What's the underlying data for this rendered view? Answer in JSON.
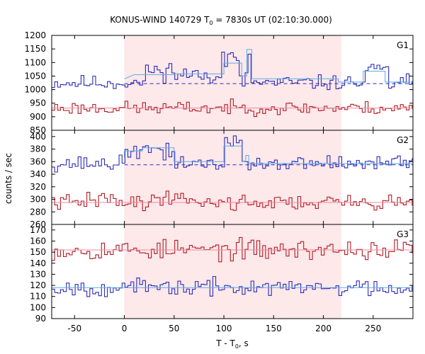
{
  "chart_data": {
    "type": "line",
    "title_main": "KONUS-WIND 140729 T",
    "title_sub": "0",
    "title_rest": " = 7830s UT (02:10:30.000)",
    "xlabel_main": "T - T",
    "xlabel_sub": "0",
    "xlabel_rest": ", s",
    "ylabel": "counts / sec",
    "xlim": [
      -73,
      290
    ],
    "xticks": [
      -50,
      0,
      50,
      100,
      150,
      200,
      250
    ],
    "shaded_interval": [
      0,
      218
    ],
    "colors": {
      "shade": "#fde8ea",
      "blue": "#2c2cb8",
      "red": "#b01c24",
      "blue_fit": "#5dade2",
      "red_fit": "#f08aa0",
      "blue_bg": "#2c2cb8"
    },
    "panels": [
      {
        "name": "G1",
        "ylim": [
          850,
          1200
        ],
        "yticks": [
          850,
          900,
          950,
          1000,
          1050,
          1100,
          1150,
          1200
        ],
        "series": [
          {
            "color": "blue",
            "base": 1025,
            "noise": 18,
            "seed": 11,
            "features": [
              [
                20,
                50,
                45
              ],
              [
                50,
                95,
                30
              ],
              [
                95,
                115,
                95
              ],
              [
                123,
                126,
                120
              ],
              [
                240,
                265,
                45
              ]
            ]
          },
          {
            "color": "red",
            "base": 932,
            "noise": 16,
            "seed": 23,
            "features": []
          }
        ],
        "fits": [
          {
            "color": "blue_fit",
            "points": [
              [
                0,
                1040
              ],
              [
                10,
                1055
              ],
              [
                50,
                1055
              ],
              [
                50,
                1058
              ],
              [
                100,
                1058
              ],
              [
                100,
                1098
              ],
              [
                118,
                1098
              ],
              [
                118,
                1050
              ],
              [
                123,
                1050
              ],
              [
                123,
                1148
              ],
              [
                128,
                1148
              ],
              [
                128,
                1040
              ],
              [
                215,
                1040
              ],
              [
                215,
                1028
              ],
              [
                240,
                1028
              ],
              [
                240,
                1068
              ],
              [
                262,
                1068
              ],
              [
                262,
                1028
              ],
              [
                290,
                1028
              ]
            ]
          },
          {
            "color": "red_fit",
            "points": [
              [
                -73,
                932
              ],
              [
                290,
                932
              ]
            ]
          }
        ],
        "bg": {
          "color": "blue_bg",
          "value": 1022,
          "dashed": true
        }
      },
      {
        "name": "G2",
        "ylim": [
          260,
          410
        ],
        "yticks": [
          260,
          280,
          300,
          320,
          340,
          360,
          380,
          400
        ],
        "series": [
          {
            "color": "blue",
            "base": 357,
            "noise": 8,
            "seed": 37,
            "features": [
              [
                0,
                50,
                20
              ],
              [
                100,
                118,
                32
              ]
            ]
          },
          {
            "color": "red",
            "base": 295,
            "noise": 8,
            "seed": 41,
            "features": [
              [
                -40,
                0,
                5
              ],
              [
                30,
                70,
                8
              ]
            ]
          }
        ],
        "fits": [
          {
            "color": "blue_fit",
            "points": [
              [
                0,
                367
              ],
              [
                0,
                377
              ],
              [
                18,
                377
              ],
              [
                18,
                382
              ],
              [
                50,
                382
              ],
              [
                50,
                360
              ],
              [
                100,
                360
              ],
              [
                100,
                385
              ],
              [
                118,
                385
              ],
              [
                118,
                360
              ],
              [
                122,
                360
              ],
              [
                122,
                370
              ],
              [
                125,
                370
              ],
              [
                125,
                357
              ],
              [
                290,
                357
              ]
            ]
          },
          {
            "color": "red_fit",
            "points": [
              [
                -73,
                295
              ],
              [
                290,
                295
              ]
            ]
          }
        ],
        "bg": {
          "color": "blue_bg",
          "value": 355,
          "dashed": true
        }
      },
      {
        "name": "G3",
        "ylim": [
          90,
          175
        ],
        "yticks": [
          90,
          100,
          110,
          120,
          130,
          140,
          150,
          160,
          170
        ],
        "series": [
          {
            "color": "red",
            "base": 152,
            "noise": 6,
            "seed": 53,
            "features": []
          },
          {
            "color": "blue",
            "base": 118,
            "noise": 5,
            "seed": 67,
            "features": []
          }
        ],
        "fits": [
          {
            "color": "red_fit",
            "points": [
              [
                -73,
                152
              ],
              [
                290,
                152
              ]
            ]
          },
          {
            "color": "blue_fit",
            "points": [
              [
                -73,
                118
              ],
              [
                290,
                118
              ]
            ]
          }
        ],
        "bg": {
          "color": "red_fit",
          "value": 152,
          "dashed": true
        }
      }
    ]
  }
}
